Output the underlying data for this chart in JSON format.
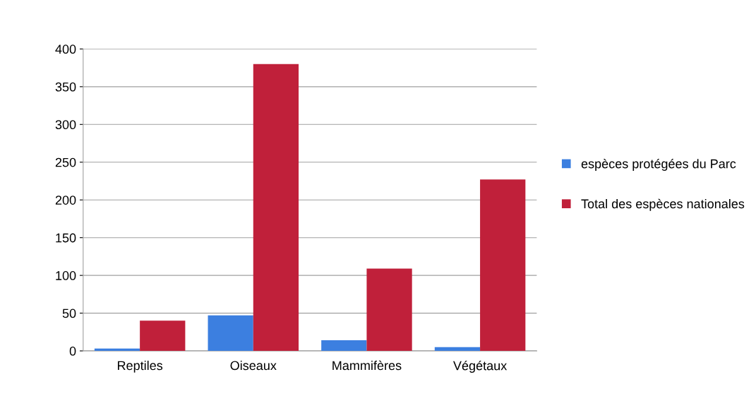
{
  "chart_data": {
    "type": "bar",
    "categories": [
      "Reptiles",
      "Oiseaux",
      "Mammifères",
      "Végétaux"
    ],
    "series": [
      {
        "name": "espèces protégées du Parc",
        "color": "#3c7fe0",
        "values": [
          3,
          47,
          14,
          5
        ]
      },
      {
        "name": "Total des espèces nationales",
        "color": "#c0203a",
        "values": [
          40,
          380,
          109,
          227
        ]
      }
    ],
    "ylim": [
      0,
      400
    ],
    "yticks": [
      0,
      50,
      100,
      150,
      200,
      250,
      300,
      350,
      400
    ],
    "grid": "y",
    "legend": "right"
  }
}
